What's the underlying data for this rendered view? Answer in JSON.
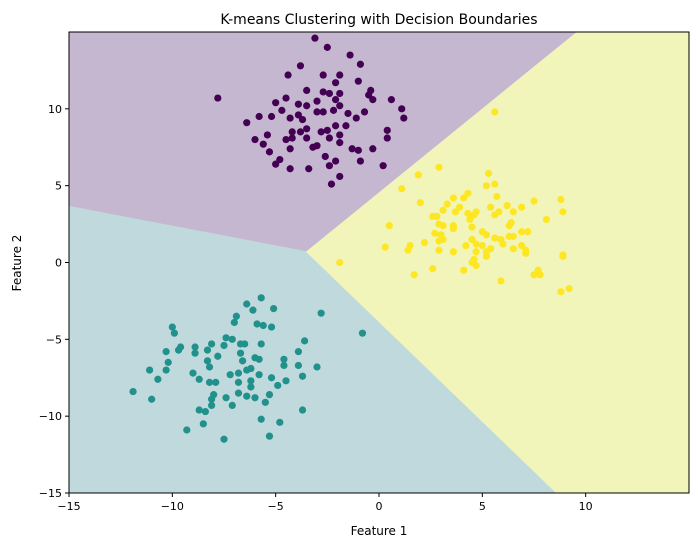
{
  "chart_data": {
    "type": "scatter",
    "title": "K-means Clustering with Decision Boundaries",
    "xlabel": "Feature 1",
    "ylabel": "Feature 2",
    "xlim": [
      -15,
      15
    ],
    "ylim": [
      -15,
      15
    ],
    "xticks": [
      -15,
      -10,
      -5,
      0,
      5,
      10
    ],
    "yticks": [
      -15,
      -10,
      -5,
      0,
      5,
      10
    ],
    "xtick_labels": [
      "−15",
      "−10",
      "−5",
      "0",
      "5",
      "10"
    ],
    "ytick_labels": [
      "−15",
      "−10",
      "−5",
      "0",
      "5",
      "10"
    ],
    "grid": false,
    "regions": [
      {
        "cluster": 0,
        "color": "#c6b7d0",
        "polygon": [
          [
            -15,
            15
          ],
          [
            9.6,
            15
          ],
          [
            -3.5,
            0.7
          ],
          [
            -15,
            3.65
          ]
        ]
      },
      {
        "cluster": 1,
        "color": "#bfd9dc",
        "polygon": [
          [
            -15,
            3.65
          ],
          [
            -3.5,
            0.7
          ],
          [
            8.6,
            -15
          ],
          [
            -15,
            -15
          ]
        ]
      },
      {
        "cluster": 2,
        "color": "#f2f5ba",
        "polygon": [
          [
            9.6,
            15
          ],
          [
            15,
            15
          ],
          [
            15,
            -15
          ],
          [
            8.6,
            -15
          ],
          [
            -3.5,
            0.7
          ]
        ]
      }
    ],
    "series": [
      {
        "cluster": 0,
        "color": "#440154",
        "points": [
          [
            -3.1,
            14.6
          ],
          [
            -2.5,
            14.0
          ],
          [
            -1.4,
            13.5
          ],
          [
            -0.9,
            12.9
          ],
          [
            -3.8,
            12.8
          ],
          [
            -4.4,
            12.2
          ],
          [
            -2.7,
            12.2
          ],
          [
            -1.9,
            12.2
          ],
          [
            -2.1,
            11.7
          ],
          [
            -1.0,
            11.8
          ],
          [
            -3.5,
            11.2
          ],
          [
            -2.7,
            11.1
          ],
          [
            -2.4,
            11.0
          ],
          [
            -1.9,
            11.0
          ],
          [
            -0.4,
            11.2
          ],
          [
            -0.5,
            10.9
          ],
          [
            -0.3,
            10.6
          ],
          [
            0.6,
            10.6
          ],
          [
            1.1,
            10.0
          ],
          [
            1.2,
            9.4
          ],
          [
            -6.4,
            9.1
          ],
          [
            -5.8,
            9.5
          ],
          [
            -5.2,
            9.5
          ],
          [
            -5.0,
            10.4
          ],
          [
            -4.5,
            10.7
          ],
          [
            -4.7,
            9.9
          ],
          [
            -4.3,
            9.4
          ],
          [
            -3.9,
            10.3
          ],
          [
            -3.5,
            10.2
          ],
          [
            -3.0,
            10.5
          ],
          [
            -3.0,
            9.8
          ],
          [
            -2.7,
            9.8
          ],
          [
            -2.2,
            9.9
          ],
          [
            -1.9,
            10.2
          ],
          [
            -2.1,
            10.6
          ],
          [
            -1.5,
            9.7
          ],
          [
            -1.1,
            9.4
          ],
          [
            -0.7,
            9.8
          ],
          [
            -3.9,
            9.6
          ],
          [
            -3.7,
            9.3
          ],
          [
            -6.0,
            8.0
          ],
          [
            -5.4,
            8.3
          ],
          [
            -5.6,
            7.7
          ],
          [
            -5.3,
            7.2
          ],
          [
            -4.5,
            8.0
          ],
          [
            -4.2,
            8.5
          ],
          [
            -3.8,
            8.5
          ],
          [
            -3.5,
            8.7
          ],
          [
            -4.2,
            8.1
          ],
          [
            -3.5,
            8.1
          ],
          [
            -4.3,
            7.4
          ],
          [
            -3.2,
            7.5
          ],
          [
            -3.0,
            7.6
          ],
          [
            -2.8,
            8.5
          ],
          [
            -2.5,
            8.6
          ],
          [
            -2.4,
            8.1
          ],
          [
            -2.1,
            8.9
          ],
          [
            -1.6,
            8.9
          ],
          [
            -1.9,
            8.3
          ],
          [
            -1.9,
            7.8
          ],
          [
            -1.3,
            7.4
          ],
          [
            -1.0,
            7.3
          ],
          [
            -0.3,
            7.4
          ],
          [
            0.4,
            8.6
          ],
          [
            0.4,
            8.1
          ],
          [
            -4.8,
            6.7
          ],
          [
            -5.0,
            6.4
          ],
          [
            -4.3,
            6.1
          ],
          [
            -3.4,
            6.1
          ],
          [
            -2.6,
            6.9
          ],
          [
            -2.4,
            6.3
          ],
          [
            -2.1,
            6.6
          ],
          [
            -0.9,
            6.6
          ],
          [
            0.2,
            6.3
          ],
          [
            -1.9,
            5.6
          ],
          [
            -2.3,
            5.1
          ],
          [
            -7.8,
            10.7
          ]
        ]
      },
      {
        "cluster": 1,
        "color": "#21918c",
        "points": [
          [
            -5.7,
            -2.3
          ],
          [
            -6.4,
            -2.7
          ],
          [
            -6.1,
            -3.1
          ],
          [
            -5.1,
            -3.0
          ],
          [
            -2.8,
            -3.3
          ],
          [
            -0.8,
            -4.6
          ],
          [
            -6.9,
            -3.5
          ],
          [
            -7.0,
            -3.9
          ],
          [
            -5.9,
            -4.0
          ],
          [
            -5.6,
            -4.1
          ],
          [
            -5.2,
            -4.2
          ],
          [
            -10.0,
            -4.2
          ],
          [
            -9.9,
            -4.6
          ],
          [
            -10.3,
            -5.8
          ],
          [
            -9.6,
            -5.5
          ],
          [
            -9.7,
            -5.7
          ],
          [
            -8.9,
            -5.5
          ],
          [
            -8.9,
            -5.9
          ],
          [
            -8.1,
            -5.3
          ],
          [
            -8.3,
            -5.7
          ],
          [
            -7.4,
            -4.9
          ],
          [
            -7.1,
            -5.0
          ],
          [
            -7.5,
            -5.4
          ],
          [
            -6.7,
            -5.3
          ],
          [
            -6.5,
            -5.3
          ],
          [
            -5.7,
            -5.3
          ],
          [
            -3.6,
            -5.1
          ],
          [
            -6.7,
            -5.9
          ],
          [
            -7.8,
            -6.1
          ],
          [
            -10.2,
            -6.5
          ],
          [
            -10.3,
            -7.0
          ],
          [
            -11.1,
            -7.0
          ],
          [
            -10.7,
            -7.6
          ],
          [
            -11.9,
            -8.4
          ],
          [
            -11.0,
            -8.9
          ],
          [
            -8.3,
            -6.4
          ],
          [
            -8.2,
            -6.8
          ],
          [
            -9.0,
            -7.2
          ],
          [
            -8.7,
            -7.6
          ],
          [
            -6.6,
            -6.4
          ],
          [
            -6.0,
            -6.2
          ],
          [
            -5.8,
            -6.3
          ],
          [
            -4.6,
            -6.3
          ],
          [
            -4.6,
            -6.7
          ],
          [
            -3.9,
            -5.8
          ],
          [
            -3.9,
            -6.7
          ],
          [
            -3.0,
            -6.8
          ],
          [
            -3.7,
            -7.4
          ],
          [
            -7.2,
            -7.3
          ],
          [
            -6.8,
            -7.2
          ],
          [
            -6.4,
            -7.0
          ],
          [
            -6.2,
            -6.9
          ],
          [
            -5.8,
            -7.3
          ],
          [
            -5.2,
            -7.5
          ],
          [
            -4.5,
            -7.7
          ],
          [
            -4.9,
            -8.0
          ],
          [
            -6.8,
            -7.8
          ],
          [
            -8.2,
            -7.8
          ],
          [
            -7.9,
            -7.8
          ],
          [
            -6.2,
            -7.7
          ],
          [
            -6.2,
            -8.1
          ],
          [
            -8.0,
            -8.6
          ],
          [
            -8.1,
            -8.9
          ],
          [
            -8.1,
            -9.3
          ],
          [
            -7.4,
            -8.8
          ],
          [
            -7.1,
            -9.3
          ],
          [
            -6.8,
            -8.5
          ],
          [
            -6.4,
            -8.7
          ],
          [
            -6.0,
            -8.8
          ],
          [
            -5.5,
            -9.1
          ],
          [
            -5.3,
            -8.6
          ],
          [
            -8.7,
            -9.6
          ],
          [
            -8.4,
            -9.7
          ],
          [
            -8.5,
            -10.5
          ],
          [
            -9.3,
            -10.9
          ],
          [
            -7.5,
            -11.5
          ],
          [
            -5.7,
            -10.2
          ],
          [
            -4.8,
            -10.4
          ],
          [
            -5.3,
            -11.3
          ],
          [
            -3.7,
            -9.6
          ]
        ]
      },
      {
        "cluster": 2,
        "color": "#fde725",
        "points": [
          [
            5.6,
            9.8
          ],
          [
            2.9,
            6.2
          ],
          [
            1.9,
            5.7
          ],
          [
            5.3,
            5.8
          ],
          [
            5.2,
            5.0
          ],
          [
            5.6,
            5.1
          ],
          [
            1.1,
            4.8
          ],
          [
            4.3,
            4.5
          ],
          [
            4.1,
            4.2
          ],
          [
            3.6,
            4.2
          ],
          [
            5.7,
            4.3
          ],
          [
            7.5,
            4.0
          ],
          [
            8.8,
            4.1
          ],
          [
            8.9,
            3.3
          ],
          [
            2.0,
            3.9
          ],
          [
            3.3,
            3.8
          ],
          [
            3.9,
            3.6
          ],
          [
            3.1,
            3.4
          ],
          [
            3.7,
            3.3
          ],
          [
            4.3,
            3.2
          ],
          [
            4.7,
            3.3
          ],
          [
            5.4,
            3.6
          ],
          [
            5.8,
            3.3
          ],
          [
            6.2,
            3.7
          ],
          [
            6.5,
            3.3
          ],
          [
            6.9,
            3.6
          ],
          [
            5.6,
            3.1
          ],
          [
            2.6,
            3.0
          ],
          [
            2.8,
            3.0
          ],
          [
            4.4,
            2.8
          ],
          [
            4.6,
            3.1
          ],
          [
            8.1,
            2.8
          ],
          [
            0.5,
            2.4
          ],
          [
            2.9,
            2.5
          ],
          [
            3.1,
            2.4
          ],
          [
            3.6,
            2.4
          ],
          [
            3.6,
            2.2
          ],
          [
            4.5,
            2.3
          ],
          [
            6.4,
            2.6
          ],
          [
            6.3,
            2.4
          ],
          [
            2.7,
            1.9
          ],
          [
            3.0,
            1.8
          ],
          [
            3.1,
            1.5
          ],
          [
            2.9,
            1.4
          ],
          [
            5.0,
            2.0
          ],
          [
            5.2,
            1.8
          ],
          [
            5.6,
            1.6
          ],
          [
            5.9,
            1.5
          ],
          [
            6.0,
            1.2
          ],
          [
            6.3,
            1.7
          ],
          [
            6.5,
            1.7
          ],
          [
            6.9,
            2.0
          ],
          [
            7.2,
            2.0
          ],
          [
            4.5,
            1.5
          ],
          [
            4.7,
            1.2
          ],
          [
            0.3,
            1.0
          ],
          [
            1.4,
            0.8
          ],
          [
            1.5,
            1.1
          ],
          [
            2.2,
            1.3
          ],
          [
            2.9,
            0.8
          ],
          [
            4.2,
            1.1
          ],
          [
            5.0,
            1.1
          ],
          [
            5.4,
            0.9
          ],
          [
            4.7,
            0.7
          ],
          [
            5.2,
            0.7
          ],
          [
            6.9,
            1.1
          ],
          [
            7.1,
            0.8
          ],
          [
            7.1,
            0.6
          ],
          [
            6.5,
            0.9
          ],
          [
            3.6,
            0.7
          ],
          [
            5.2,
            0.4
          ],
          [
            4.6,
            0.2
          ],
          [
            4.5,
            0.0
          ],
          [
            4.7,
            -0.2
          ],
          [
            8.9,
            0.5
          ],
          [
            8.9,
            0.4
          ],
          [
            -1.9,
            0.0
          ],
          [
            2.6,
            -0.4
          ],
          [
            4.1,
            -0.5
          ],
          [
            1.7,
            -0.8
          ],
          [
            5.9,
            -1.2
          ],
          [
            7.7,
            -0.5
          ],
          [
            7.5,
            -0.8
          ],
          [
            7.8,
            -0.8
          ],
          [
            8.8,
            -1.9
          ],
          [
            9.2,
            -1.7
          ]
        ]
      }
    ]
  }
}
